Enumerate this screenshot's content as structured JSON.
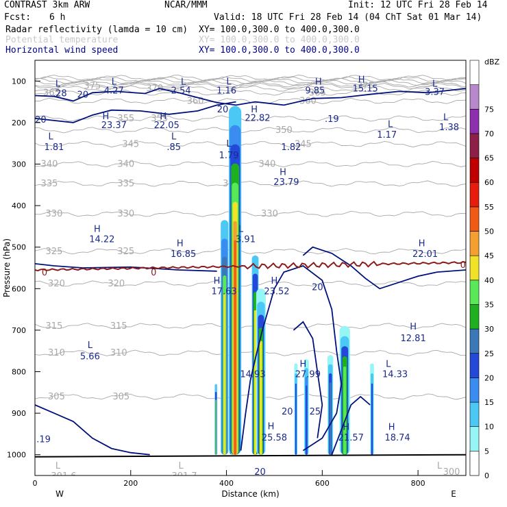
{
  "header": {
    "model": "CONTRAST  3km ARW",
    "center": "NCAR/MMM",
    "init": "Init: 12 UTC Fri 28 Feb 14",
    "fcst_label": "Fcst:",
    "fcst_value": "6 h",
    "valid": "Valid: 18 UTC Fri 28 Feb 14 (04 ChT Sat 01 Mar 14)"
  },
  "legend_fields": [
    {
      "name": "Radar reflectivity (lamda = 10 cm)",
      "xy": "XY= 100.0,300.0 to 400.0,300.0",
      "color": "#000000"
    },
    {
      "name": "Potential temperature",
      "xy": "XY= 100.0,300.0 to 400.0,300.0",
      "color": "#c8c8c8"
    },
    {
      "name": "Horizontal wind speed",
      "xy": "XY= 100.0,300.0 to 400.0,300.0",
      "color": "#00008b"
    }
  ],
  "colors": {
    "theta": "#a8a8a8",
    "wind": "#00107a",
    "freezing": "#8b1a1a",
    "annotation": "#1a2a8c"
  },
  "chart_data": {
    "type": "cross-section",
    "xlabel": "Distance (km)",
    "ylabel": "Pressure (hPa)",
    "xlim": [
      0,
      900
    ],
    "ylim": [
      1050,
      50
    ],
    "x_ticks": [
      "0",
      "200",
      "400",
      "600",
      "800"
    ],
    "x_tick_values": [
      0,
      200,
      400,
      600,
      800
    ],
    "y_ticks": [
      "100",
      "200",
      "300",
      "400",
      "500",
      "600",
      "700",
      "800",
      "900",
      "1000"
    ],
    "y_tick_values": [
      100,
      200,
      300,
      400,
      500,
      600,
      700,
      800,
      900,
      1000
    ],
    "west_label": "W",
    "east_label": "E",
    "colorbar": {
      "unit": "dBZ",
      "levels": [
        "0",
        "5",
        "10",
        "15",
        "20",
        "25",
        "30",
        "35",
        "40",
        "45",
        "50",
        "55",
        "60",
        "65",
        "70",
        "75"
      ],
      "colors": [
        "#ffffff",
        "#96f5f5",
        "#4cc8f5",
        "#3a8cf0",
        "#2448d8",
        "#3a78b8",
        "#1eb01e",
        "#58e858",
        "#f0e228",
        "#f4a030",
        "#f05a14",
        "#e81c0c",
        "#c00000",
        "#8c2048",
        "#8c30b0",
        "#b888cc"
      ]
    },
    "reflectivity_cells": [
      {
        "x": 378,
        "top": 830,
        "bottom": 1000,
        "w": 5,
        "levels": [
          10,
          20,
          35
        ]
      },
      {
        "x": 396,
        "top": 435,
        "bottom": 1000,
        "w": 16,
        "levels": [
          10,
          15,
          25,
          35,
          40
        ]
      },
      {
        "x": 412,
        "top": 480,
        "bottom": 1000,
        "w": 12,
        "levels": [
          10,
          20,
          35,
          40
        ]
      },
      {
        "x": 418,
        "top": 160,
        "bottom": 1000,
        "w": 26,
        "levels": [
          10,
          15,
          20,
          30,
          35,
          40,
          45,
          50
        ]
      },
      {
        "x": 460,
        "top": 520,
        "bottom": 1000,
        "w": 14,
        "levels": [
          10,
          20,
          30,
          40
        ]
      },
      {
        "x": 472,
        "top": 600,
        "bottom": 1000,
        "w": 20,
        "levels": [
          5,
          10,
          20,
          30,
          40
        ]
      },
      {
        "x": 545,
        "top": 780,
        "bottom": 1000,
        "w": 7,
        "levels": [
          5,
          10,
          20
        ]
      },
      {
        "x": 567,
        "top": 770,
        "bottom": 1000,
        "w": 10,
        "levels": [
          5,
          10,
          15,
          20
        ]
      },
      {
        "x": 617,
        "top": 760,
        "bottom": 1000,
        "w": 12,
        "levels": [
          5,
          10,
          20,
          25
        ]
      },
      {
        "x": 647,
        "top": 690,
        "bottom": 1000,
        "w": 22,
        "levels": [
          5,
          10,
          20,
          30,
          35
        ]
      },
      {
        "x": 704,
        "top": 780,
        "bottom": 1000,
        "w": 8,
        "levels": [
          5,
          10,
          20
        ]
      }
    ],
    "theta_contours": [
      {
        "label": "375",
        "p": 112,
        "label_x": [
          120,
          690
        ]
      },
      {
        "label": "370",
        "p": 118,
        "label_x": [
          250
        ]
      },
      {
        "label": "365",
        "p": 128,
        "label_x": [
          35,
          590
        ]
      },
      {
        "label": "360",
        "p": 148,
        "label_x": [
          335,
          570
        ]
      },
      {
        "label": "355",
        "p": 190,
        "label_x": [
          190,
          260
        ]
      },
      {
        "label": "350",
        "p": 218,
        "label_x": [
          520
        ]
      },
      {
        "label": "345",
        "p": 252,
        "label_x": [
          200,
          560
        ]
      },
      {
        "label": "340",
        "p": 300,
        "label_x": [
          30,
          190,
          485
        ]
      },
      {
        "label": "335",
        "p": 347,
        "label_x": [
          30,
          190,
          410
        ]
      },
      {
        "label": "330",
        "p": 420,
        "label_x": [
          40,
          190,
          490
        ]
      },
      {
        "label": "325",
        "p": 510,
        "label_x": [
          40,
          190
        ]
      },
      {
        "label": "320",
        "p": 588,
        "label_x": [
          45,
          170
        ]
      },
      {
        "label": "315",
        "p": 690,
        "label_x": [
          40,
          175
        ]
      },
      {
        "label": "310",
        "p": 755,
        "label_x": [
          45,
          175
        ]
      },
      {
        "label": "305",
        "p": 860,
        "label_x": [
          45,
          180
        ]
      }
    ],
    "annotations": [
      {
        "t": "L",
        "x": 48,
        "p": 105,
        "c": "wind"
      },
      {
        "t": ".28",
        "x": 52,
        "p": 128,
        "c": "wind"
      },
      {
        "t": "L",
        "x": 165,
        "p": 100,
        "c": "wind"
      },
      {
        "t": "4.27",
        "x": 165,
        "p": 122,
        "c": "wind"
      },
      {
        "t": "L",
        "x": 310,
        "p": 100,
        "c": "wind"
      },
      {
        "t": "2.54",
        "x": 305,
        "p": 122,
        "c": "wind"
      },
      {
        "t": "L",
        "x": 405,
        "p": 100,
        "c": "wind"
      },
      {
        "t": "1.16",
        "x": 400,
        "p": 122,
        "c": "wind"
      },
      {
        "t": "H",
        "x": 592,
        "p": 100,
        "c": "wind"
      },
      {
        "t": "9.85",
        "x": 585,
        "p": 122,
        "c": "wind"
      },
      {
        "t": "H",
        "x": 682,
        "p": 95,
        "c": "wind"
      },
      {
        "t": "15.15",
        "x": 690,
        "p": 117,
        "c": "wind"
      },
      {
        "t": "L",
        "x": 835,
        "p": 105,
        "c": "wind"
      },
      {
        "t": "3.37",
        "x": 835,
        "p": 125,
        "c": "wind"
      },
      {
        "t": "20",
        "x": 100,
        "p": 132,
        "c": "wind"
      },
      {
        "t": "H",
        "x": 148,
        "p": 184,
        "c": "wind"
      },
      {
        "t": "23.37",
        "x": 165,
        "p": 205,
        "c": "wind"
      },
      {
        "t": "H",
        "x": 268,
        "p": 184,
        "c": "wind"
      },
      {
        "t": "22.05",
        "x": 275,
        "p": 205,
        "c": "wind"
      },
      {
        "t": "20",
        "x": 392,
        "p": 167,
        "c": "wind"
      },
      {
        "t": "H",
        "x": 458,
        "p": 167,
        "c": "wind"
      },
      {
        "t": "22.82",
        "x": 465,
        "p": 188,
        "c": "wind"
      },
      {
        "t": ".19",
        "x": 620,
        "p": 190,
        "c": "wind"
      },
      {
        "t": "L",
        "x": 858,
        "p": 186,
        "c": "wind"
      },
      {
        "t": "1.38",
        "x": 865,
        "p": 210,
        "c": "wind"
      },
      {
        "t": "L",
        "x": 742,
        "p": 203,
        "c": "wind"
      },
      {
        "t": "1.17",
        "x": 735,
        "p": 228,
        "c": "wind"
      },
      {
        "t": "20",
        "x": 12,
        "p": 192,
        "c": "wind"
      },
      {
        "t": "L",
        "x": 33,
        "p": 232,
        "c": "wind"
      },
      {
        "t": "1.81",
        "x": 40,
        "p": 258,
        "c": "wind"
      },
      {
        "t": "L",
        "x": 290,
        "p": 232,
        "c": "wind"
      },
      {
        "t": ".85",
        "x": 290,
        "p": 258,
        "c": "wind"
      },
      {
        "t": "L",
        "x": 405,
        "p": 250,
        "c": "wind"
      },
      {
        "t": "1.79",
        "x": 405,
        "p": 278,
        "c": "wind"
      },
      {
        "t": "1.82",
        "x": 535,
        "p": 258,
        "c": "wind"
      },
      {
        "t": "H",
        "x": 518,
        "p": 318,
        "c": "wind"
      },
      {
        "t": "23.79",
        "x": 525,
        "p": 342,
        "c": "wind"
      },
      {
        "t": "H",
        "x": 130,
        "p": 455,
        "c": "wind"
      },
      {
        "t": "14.22",
        "x": 140,
        "p": 480,
        "c": "wind"
      },
      {
        "t": "L",
        "x": 430,
        "p": 455,
        "c": "wind"
      },
      {
        "t": "3.91",
        "x": 440,
        "p": 480,
        "c": "wind"
      },
      {
        "t": "H",
        "x": 303,
        "p": 490,
        "c": "wind"
      },
      {
        "t": "16.85",
        "x": 310,
        "p": 515,
        "c": "wind"
      },
      {
        "t": "H",
        "x": 808,
        "p": 490,
        "c": "wind"
      },
      {
        "t": "22.01",
        "x": 815,
        "p": 515,
        "c": "wind"
      },
      {
        "t": "H",
        "x": 380,
        "p": 580,
        "c": "wind"
      },
      {
        "t": "17.63",
        "x": 395,
        "p": 605,
        "c": "wind"
      },
      {
        "t": "H",
        "x": 500,
        "p": 580,
        "c": "wind"
      },
      {
        "t": "23.52",
        "x": 505,
        "p": 605,
        "c": "wind"
      },
      {
        "t": "20",
        "x": 590,
        "p": 595,
        "c": "wind"
      },
      {
        "t": "L",
        "x": 115,
        "p": 735,
        "c": "wind"
      },
      {
        "t": "5.66",
        "x": 115,
        "p": 762,
        "c": "wind"
      },
      {
        "t": "H",
        "x": 790,
        "p": 690,
        "c": "wind"
      },
      {
        "t": "12.81",
        "x": 790,
        "p": 718,
        "c": "wind"
      },
      {
        "t": "14.93",
        "x": 455,
        "p": 805,
        "c": "wind"
      },
      {
        "t": "H",
        "x": 560,
        "p": 780,
        "c": "wind"
      },
      {
        "t": "27.99",
        "x": 570,
        "p": 805,
        "c": "wind"
      },
      {
        "t": "L",
        "x": 738,
        "p": 780,
        "c": "wind"
      },
      {
        "t": "14.33",
        "x": 752,
        "p": 805,
        "c": "wind"
      },
      {
        "t": "20",
        "x": 527,
        "p": 895,
        "c": "wind"
      },
      {
        "t": "25",
        "x": 585,
        "p": 895,
        "c": "wind"
      },
      {
        "t": "H",
        "x": 493,
        "p": 930,
        "c": "wind"
      },
      {
        "t": "25.58",
        "x": 500,
        "p": 958,
        "c": "wind"
      },
      {
        "t": "H",
        "x": 650,
        "p": 932,
        "c": "wind"
      },
      {
        "t": "21.57",
        "x": 660,
        "p": 958,
        "c": "wind"
      },
      {
        "t": "H",
        "x": 745,
        "p": 932,
        "c": "wind"
      },
      {
        "t": "18.74",
        "x": 757,
        "p": 958,
        "c": "wind"
      },
      {
        "t": ".19",
        "x": 18,
        "p": 962,
        "c": "wind"
      },
      {
        "t": "20",
        "x": 470,
        "p": 1040,
        "c": "wind"
      },
      {
        "t": "L",
        "x": 48,
        "p": 1025,
        "c": "theta"
      },
      {
        "t": "301.6",
        "x": 60,
        "p": 1050,
        "c": "theta"
      },
      {
        "t": "L",
        "x": 305,
        "p": 1025,
        "c": "theta"
      },
      {
        "t": "301.7",
        "x": 312,
        "p": 1050,
        "c": "theta"
      },
      {
        "t": "L",
        "x": 845,
        "p": 1025,
        "c": "theta"
      },
      {
        "t": "300",
        "x": 870,
        "p": 1040,
        "c": "theta"
      },
      {
        "t": "0",
        "x": 20,
        "p": 560,
        "c": "freezing"
      },
      {
        "t": "0",
        "x": 248,
        "p": 560,
        "c": "freezing"
      },
      {
        "t": "0",
        "x": 894,
        "p": 542,
        "c": "freezing"
      }
    ]
  }
}
